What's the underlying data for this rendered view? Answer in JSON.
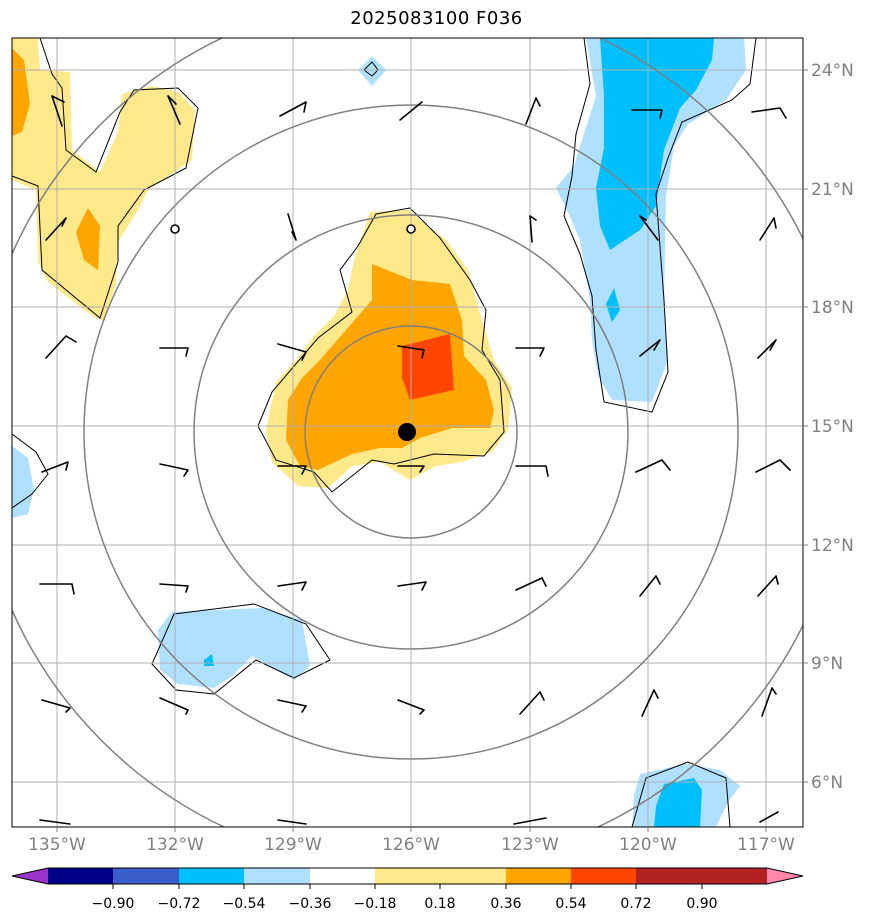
{
  "title": "2025083100 F036",
  "map": {
    "lat_labels": [
      "24°N",
      "21°N",
      "18°N",
      "15°N",
      "12°N",
      "9°N",
      "6°N"
    ],
    "lon_labels": [
      "135°W",
      "132°W",
      "129°W",
      "126°W",
      "123°W",
      "120°W",
      "117°W"
    ],
    "grid_color": "#b0b0b0",
    "ring_color": "#808080"
  },
  "colorbar": {
    "ticks": [
      "−0.90",
      "−0.72",
      "−0.54",
      "−0.36",
      "−0.18",
      "0.18",
      "0.36",
      "0.54",
      "0.72",
      "0.90"
    ],
    "colors": [
      "#9933cc",
      "#00008b",
      "#3a5fcd",
      "#00bfff",
      "#b0e0ff",
      "#ffffff",
      "#ffe98a",
      "#ffa500",
      "#ff4500",
      "#b22222",
      "#ff88aa"
    ]
  },
  "colors": {
    "light_yellow": "#ffe98a",
    "orange": "#ffa500",
    "red_orange": "#ff4500",
    "light_blue": "#b0e0ff",
    "deep_sky": "#00bfff"
  }
}
